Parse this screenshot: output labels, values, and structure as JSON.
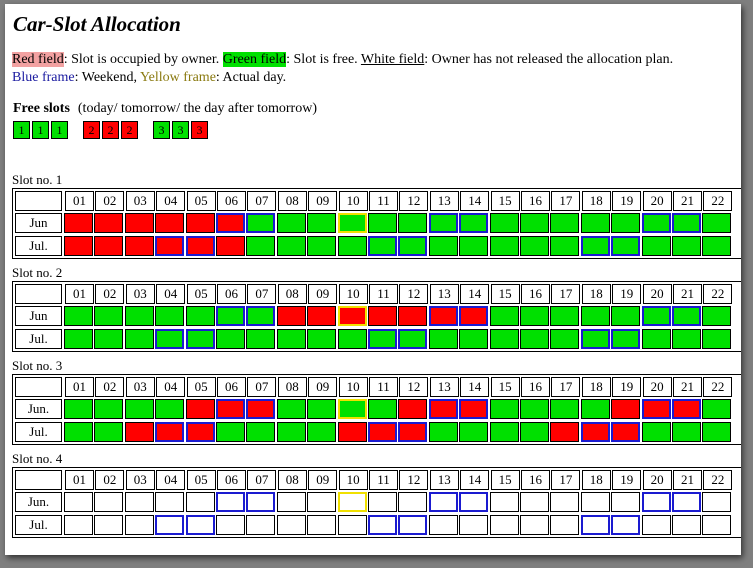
{
  "title": "Car-Slot Allocation",
  "legend": {
    "red_label": "Red field",
    "red_text": ":  Slot is occupied by owner. ",
    "green_label": "Green field",
    "green_text": ": Slot is free. ",
    "white_label": "White field",
    "white_text": ": Owner has not released the allocation plan.",
    "blue_label": "Blue frame",
    "blue_text": ": Weekend, ",
    "yellow_label": "Yellow frame",
    "yellow_text": ": Actual day."
  },
  "free_slots": {
    "heading": "Free slots",
    "subheading": "(today/ tomorrow/ the day after tomorrow)",
    "groups": [
      [
        {
          "v": "1",
          "c": "g"
        },
        {
          "v": "1",
          "c": "g"
        },
        {
          "v": "1",
          "c": "g"
        }
      ],
      [
        {
          "v": "2",
          "c": "r"
        },
        {
          "v": "2",
          "c": "r"
        },
        {
          "v": "2",
          "c": "r"
        }
      ],
      [
        {
          "v": "3",
          "c": "g"
        },
        {
          "v": "3",
          "c": "g"
        },
        {
          "v": "3",
          "c": "r"
        }
      ]
    ]
  },
  "days": [
    "01",
    "02",
    "03",
    "04",
    "05",
    "06",
    "07",
    "08",
    "09",
    "10",
    "11",
    "12",
    "13",
    "14",
    "15",
    "16",
    "17",
    "18",
    "19",
    "20",
    "21",
    "22"
  ],
  "colors": {
    "red": "#ff0000",
    "green": "#00e000",
    "weekend": "#1a1ad0",
    "today": "#f0e000"
  },
  "slots": [
    {
      "label": "Slot no. 1",
      "months": [
        {
          "name": "Jun",
          "cells": "RRRRRRGGGGGGGGGGGGGGGG"
        },
        {
          "name": "Jul.",
          "cells": "RRRRRRGGGGGGGGGGGGGGGG"
        }
      ]
    },
    {
      "label": "Slot no. 2",
      "months": [
        {
          "name": "Jun",
          "cells": "GGGGGGGRRRRRRRGGGGGGGG"
        },
        {
          "name": "Jul.",
          "cells": "GGGGGGGGGGGGGGGGGGGGGG"
        }
      ]
    },
    {
      "label": "Slot no. 3",
      "months": [
        {
          "name": "Jun.",
          "cells": "GGGGRRRGGGGRRRGGGGRRRG"
        },
        {
          "name": "Jul.",
          "cells": "GGRRRGGGGRRRGGGGRRRGGG"
        }
      ]
    },
    {
      "label": "Slot no. 4",
      "months": [
        {
          "name": "Jun.",
          "cells": "WWWWWWWWWWWWWWWWWWWWWW"
        },
        {
          "name": "Jul.",
          "cells": "WWWWWWWWWWWWWWWWWWWWWW"
        }
      ]
    }
  ],
  "weekends": {
    "Jun": [
      6,
      7,
      13,
      14,
      20,
      21
    ],
    "Jul": [
      4,
      5,
      11,
      12,
      18,
      19
    ]
  },
  "today": 10
}
